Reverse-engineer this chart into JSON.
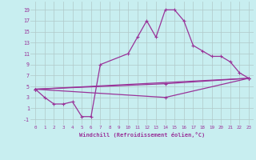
{
  "xlabel": "Windchill (Refroidissement éolien,°C)",
  "background_color": "#c8eef0",
  "grid_color": "#b0c8c8",
  "line_color": "#993399",
  "xlim": [
    -0.5,
    23.5
  ],
  "ylim": [
    -2.0,
    20.5
  ],
  "xticks": [
    0,
    1,
    2,
    3,
    4,
    5,
    6,
    7,
    8,
    9,
    10,
    11,
    12,
    13,
    14,
    15,
    16,
    17,
    18,
    19,
    20,
    21,
    22,
    23
  ],
  "yticks": [
    -1,
    1,
    3,
    5,
    7,
    9,
    11,
    13,
    15,
    17,
    19
  ],
  "line1_x": [
    0,
    1,
    2,
    3,
    4,
    5,
    6,
    7,
    10,
    11,
    12,
    13,
    14,
    15,
    16,
    17,
    18,
    19,
    20,
    21,
    22,
    23
  ],
  "line1_y": [
    4.5,
    3.0,
    1.8,
    1.8,
    2.2,
    -0.5,
    -0.5,
    9.0,
    11.0,
    14.0,
    17.0,
    14.0,
    19.0,
    19.0,
    17.0,
    12.5,
    11.5,
    10.5,
    10.5,
    9.5,
    7.5,
    6.5
  ],
  "line2_x": [
    0,
    23
  ],
  "line2_y": [
    4.5,
    6.5
  ],
  "line3_x": [
    0,
    14,
    23
  ],
  "line3_y": [
    4.5,
    5.5,
    6.5
  ],
  "line4_x": [
    0,
    14,
    23
  ],
  "line4_y": [
    4.5,
    3.0,
    6.5
  ]
}
